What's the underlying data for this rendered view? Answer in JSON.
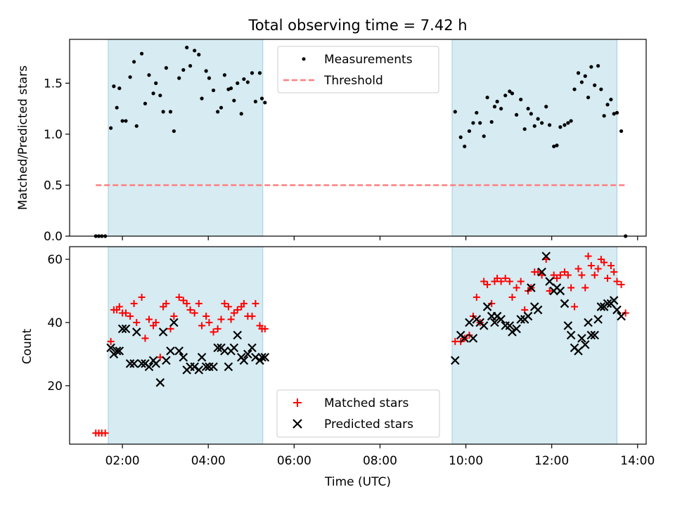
{
  "chart_data": [
    {
      "type": "scatter",
      "title": "Total observing time = 7.42 h",
      "ylabel": "Matched/Predicted stars",
      "xlabel": "",
      "xlim": [
        0.77,
        14.2
      ],
      "ylim": [
        0,
        1.93
      ],
      "yticks": [
        0.0,
        0.5,
        1.0,
        1.5
      ],
      "ytick_labels": [
        "0.0",
        "0.5",
        "1.0",
        "1.5"
      ],
      "shaded_regions": [
        [
          1.67,
          5.27
        ],
        [
          9.68,
          13.52
        ]
      ],
      "legend": {
        "position": "top-center"
      },
      "series": [
        {
          "name": "Measurements",
          "color": "#000000",
          "marker": "dot",
          "points": [
            [
              1.38,
              0.0
            ],
            [
              1.45,
              0.0
            ],
            [
              1.52,
              0.0
            ],
            [
              1.6,
              0.0
            ],
            [
              1.73,
              1.06
            ],
            [
              1.8,
              1.47
            ],
            [
              1.87,
              1.26
            ],
            [
              1.93,
              1.45
            ],
            [
              2.0,
              1.13
            ],
            [
              2.08,
              1.13
            ],
            [
              2.18,
              1.56
            ],
            [
              2.27,
              1.71
            ],
            [
              2.33,
              1.08
            ],
            [
              2.45,
              1.79
            ],
            [
              2.53,
              1.3
            ],
            [
              2.62,
              1.58
            ],
            [
              2.72,
              1.4
            ],
            [
              2.78,
              1.5
            ],
            [
              2.88,
              1.38
            ],
            [
              2.95,
              1.22
            ],
            [
              3.02,
              1.65
            ],
            [
              3.12,
              1.22
            ],
            [
              3.2,
              1.03
            ],
            [
              3.32,
              1.55
            ],
            [
              3.42,
              1.63
            ],
            [
              3.5,
              1.85
            ],
            [
              3.58,
              1.67
            ],
            [
              3.68,
              1.82
            ],
            [
              3.78,
              1.78
            ],
            [
              3.85,
              1.35
            ],
            [
              3.95,
              1.62
            ],
            [
              4.02,
              1.55
            ],
            [
              4.12,
              1.43
            ],
            [
              4.22,
              1.22
            ],
            [
              4.3,
              1.26
            ],
            [
              4.38,
              1.58
            ],
            [
              4.47,
              1.44
            ],
            [
              4.53,
              1.45
            ],
            [
              4.6,
              1.33
            ],
            [
              4.68,
              1.5
            ],
            [
              4.77,
              1.2
            ],
            [
              4.83,
              1.54
            ],
            [
              4.92,
              1.51
            ],
            [
              5.02,
              1.6
            ],
            [
              5.1,
              1.32
            ],
            [
              5.2,
              1.6
            ],
            [
              5.25,
              1.35
            ],
            [
              5.32,
              1.31
            ],
            [
              9.75,
              1.22
            ],
            [
              9.88,
              0.97
            ],
            [
              9.97,
              0.88
            ],
            [
              10.08,
              1.03
            ],
            [
              10.17,
              1.11
            ],
            [
              10.25,
              1.21
            ],
            [
              10.33,
              1.11
            ],
            [
              10.42,
              0.98
            ],
            [
              10.5,
              1.36
            ],
            [
              10.6,
              1.12
            ],
            [
              10.67,
              1.27
            ],
            [
              10.73,
              1.32
            ],
            [
              10.82,
              1.25
            ],
            [
              10.92,
              1.38
            ],
            [
              11.02,
              1.42
            ],
            [
              11.08,
              1.4
            ],
            [
              11.18,
              1.19
            ],
            [
              11.28,
              1.34
            ],
            [
              11.37,
              1.05
            ],
            [
              11.45,
              1.25
            ],
            [
              11.52,
              1.2
            ],
            [
              11.6,
              1.08
            ],
            [
              11.68,
              1.15
            ],
            [
              11.77,
              1.11
            ],
            [
              11.87,
              1.27
            ],
            [
              11.95,
              1.09
            ],
            [
              12.05,
              0.88
            ],
            [
              12.12,
              0.89
            ],
            [
              12.2,
              1.07
            ],
            [
              12.3,
              1.09
            ],
            [
              12.38,
              1.11
            ],
            [
              12.45,
              1.13
            ],
            [
              12.53,
              1.44
            ],
            [
              12.62,
              1.6
            ],
            [
              12.7,
              1.51
            ],
            [
              12.78,
              1.57
            ],
            [
              12.85,
              1.36
            ],
            [
              12.92,
              1.66
            ],
            [
              13.0,
              1.48
            ],
            [
              13.08,
              1.67
            ],
            [
              13.15,
              1.44
            ],
            [
              13.22,
              1.18
            ],
            [
              13.3,
              1.29
            ],
            [
              13.38,
              1.34
            ],
            [
              13.45,
              1.2
            ],
            [
              13.52,
              1.21
            ],
            [
              13.62,
              1.03
            ],
            [
              13.72,
              0.0
            ]
          ]
        },
        {
          "name": "Threshold",
          "color": "#ff7f7f",
          "style": "dashed",
          "x": [
            1.38,
            13.72
          ],
          "y": [
            0.5,
            0.5
          ]
        }
      ]
    },
    {
      "type": "scatter",
      "title": "",
      "xlabel": "Time (UTC)",
      "ylabel": "Count",
      "xlim": [
        0.77,
        14.2
      ],
      "ylim": [
        1.5,
        64
      ],
      "xticks": [
        2,
        4,
        6,
        8,
        10,
        12,
        14
      ],
      "xtick_labels": [
        "02:00",
        "04:00",
        "06:00",
        "08:00",
        "10:00",
        "12:00",
        "14:00"
      ],
      "yticks": [
        20,
        40,
        60
      ],
      "ytick_labels": [
        "20",
        "40",
        "60"
      ],
      "shaded_regions": [
        [
          1.67,
          5.27
        ],
        [
          9.68,
          13.52
        ]
      ],
      "legend": {
        "position": "bottom-center"
      },
      "series": [
        {
          "name": "Matched stars",
          "color": "#ff0000",
          "marker": "plus",
          "x": [
            1.38,
            1.45,
            1.52,
            1.6,
            1.73,
            1.8,
            1.87,
            1.93,
            2.0,
            2.08,
            2.18,
            2.27,
            2.33,
            2.45,
            2.53,
            2.62,
            2.72,
            2.78,
            2.88,
            2.95,
            3.02,
            3.12,
            3.2,
            3.32,
            3.42,
            3.5,
            3.58,
            3.68,
            3.78,
            3.85,
            3.95,
            4.02,
            4.12,
            4.22,
            4.3,
            4.38,
            4.47,
            4.53,
            4.6,
            4.68,
            4.77,
            4.83,
            4.92,
            5.02,
            5.1,
            5.2,
            5.25,
            5.32,
            9.75,
            9.88,
            9.97,
            10.08,
            10.17,
            10.25,
            10.33,
            10.42,
            10.5,
            10.6,
            10.67,
            10.73,
            10.82,
            10.92,
            11.02,
            11.08,
            11.18,
            11.28,
            11.37,
            11.45,
            11.52,
            11.6,
            11.68,
            11.77,
            11.87,
            11.95,
            12.05,
            12.12,
            12.2,
            12.3,
            12.38,
            12.45,
            12.53,
            12.62,
            12.7,
            12.78,
            12.85,
            12.92,
            13.0,
            13.08,
            13.15,
            13.22,
            13.3,
            13.38,
            13.45,
            13.52,
            13.62,
            13.72
          ],
          "y": [
            5,
            5,
            5,
            5,
            34,
            44,
            44,
            45,
            43,
            43,
            42,
            46,
            40,
            48,
            35,
            41,
            39,
            40,
            29,
            45,
            46,
            38,
            42,
            48,
            47,
            46,
            44,
            43,
            46,
            39,
            42,
            40,
            37,
            38,
            41,
            46,
            45,
            41,
            43,
            44,
            45,
            46,
            42,
            42,
            46,
            39,
            38,
            38,
            34,
            34,
            35,
            36,
            42,
            48,
            40,
            53,
            52,
            46,
            53,
            54,
            53,
            54,
            53,
            48,
            51,
            53,
            44,
            50,
            51,
            56,
            56,
            55,
            60,
            50,
            55,
            54,
            55,
            56,
            55,
            51,
            45,
            57,
            55,
            51,
            61,
            58,
            55,
            57,
            60,
            59,
            54,
            58,
            56,
            53,
            52,
            43
          ]
        },
        {
          "name": "Predicted stars",
          "color": "#000000",
          "marker": "x",
          "x": [
            1.73,
            1.8,
            1.87,
            1.93,
            2.0,
            2.08,
            2.18,
            2.27,
            2.33,
            2.45,
            2.53,
            2.62,
            2.72,
            2.78,
            2.88,
            2.95,
            3.02,
            3.12,
            3.2,
            3.32,
            3.42,
            3.5,
            3.58,
            3.68,
            3.78,
            3.85,
            3.95,
            4.02,
            4.12,
            4.22,
            4.3,
            4.38,
            4.47,
            4.53,
            4.6,
            4.68,
            4.77,
            4.83,
            4.92,
            5.02,
            5.1,
            5.2,
            5.25,
            5.32,
            9.75,
            9.88,
            9.97,
            10.08,
            10.17,
            10.25,
            10.33,
            10.42,
            10.5,
            10.6,
            10.67,
            10.73,
            10.82,
            10.92,
            11.02,
            11.08,
            11.18,
            11.28,
            11.37,
            11.45,
            11.52,
            11.6,
            11.68,
            11.77,
            11.87,
            11.95,
            12.05,
            12.12,
            12.2,
            12.3,
            12.38,
            12.45,
            12.53,
            12.62,
            12.7,
            12.78,
            12.85,
            12.92,
            13.0,
            13.08,
            13.15,
            13.22,
            13.3,
            13.38,
            13.45,
            13.52,
            13.62
          ],
          "y": [
            32,
            30,
            31,
            31,
            38,
            38,
            27,
            27,
            37,
            27,
            27,
            26,
            28,
            27,
            21,
            37,
            28,
            31,
            40,
            31,
            29,
            25,
            26,
            26,
            25,
            29,
            26,
            26,
            26,
            32,
            32,
            31,
            26,
            31,
            32,
            36,
            29,
            28,
            30,
            32,
            29,
            28,
            29,
            29,
            28,
            36,
            35,
            40,
            35,
            41,
            40,
            39,
            45,
            42,
            40,
            42,
            41,
            39,
            39,
            37,
            38,
            41,
            41,
            42,
            51,
            45,
            44,
            56,
            61,
            53,
            50,
            51,
            50,
            46,
            39,
            36,
            32,
            31,
            35,
            33,
            40,
            36,
            36,
            41,
            45,
            45,
            46,
            46,
            47,
            44,
            42
          ]
        }
      ]
    }
  ]
}
